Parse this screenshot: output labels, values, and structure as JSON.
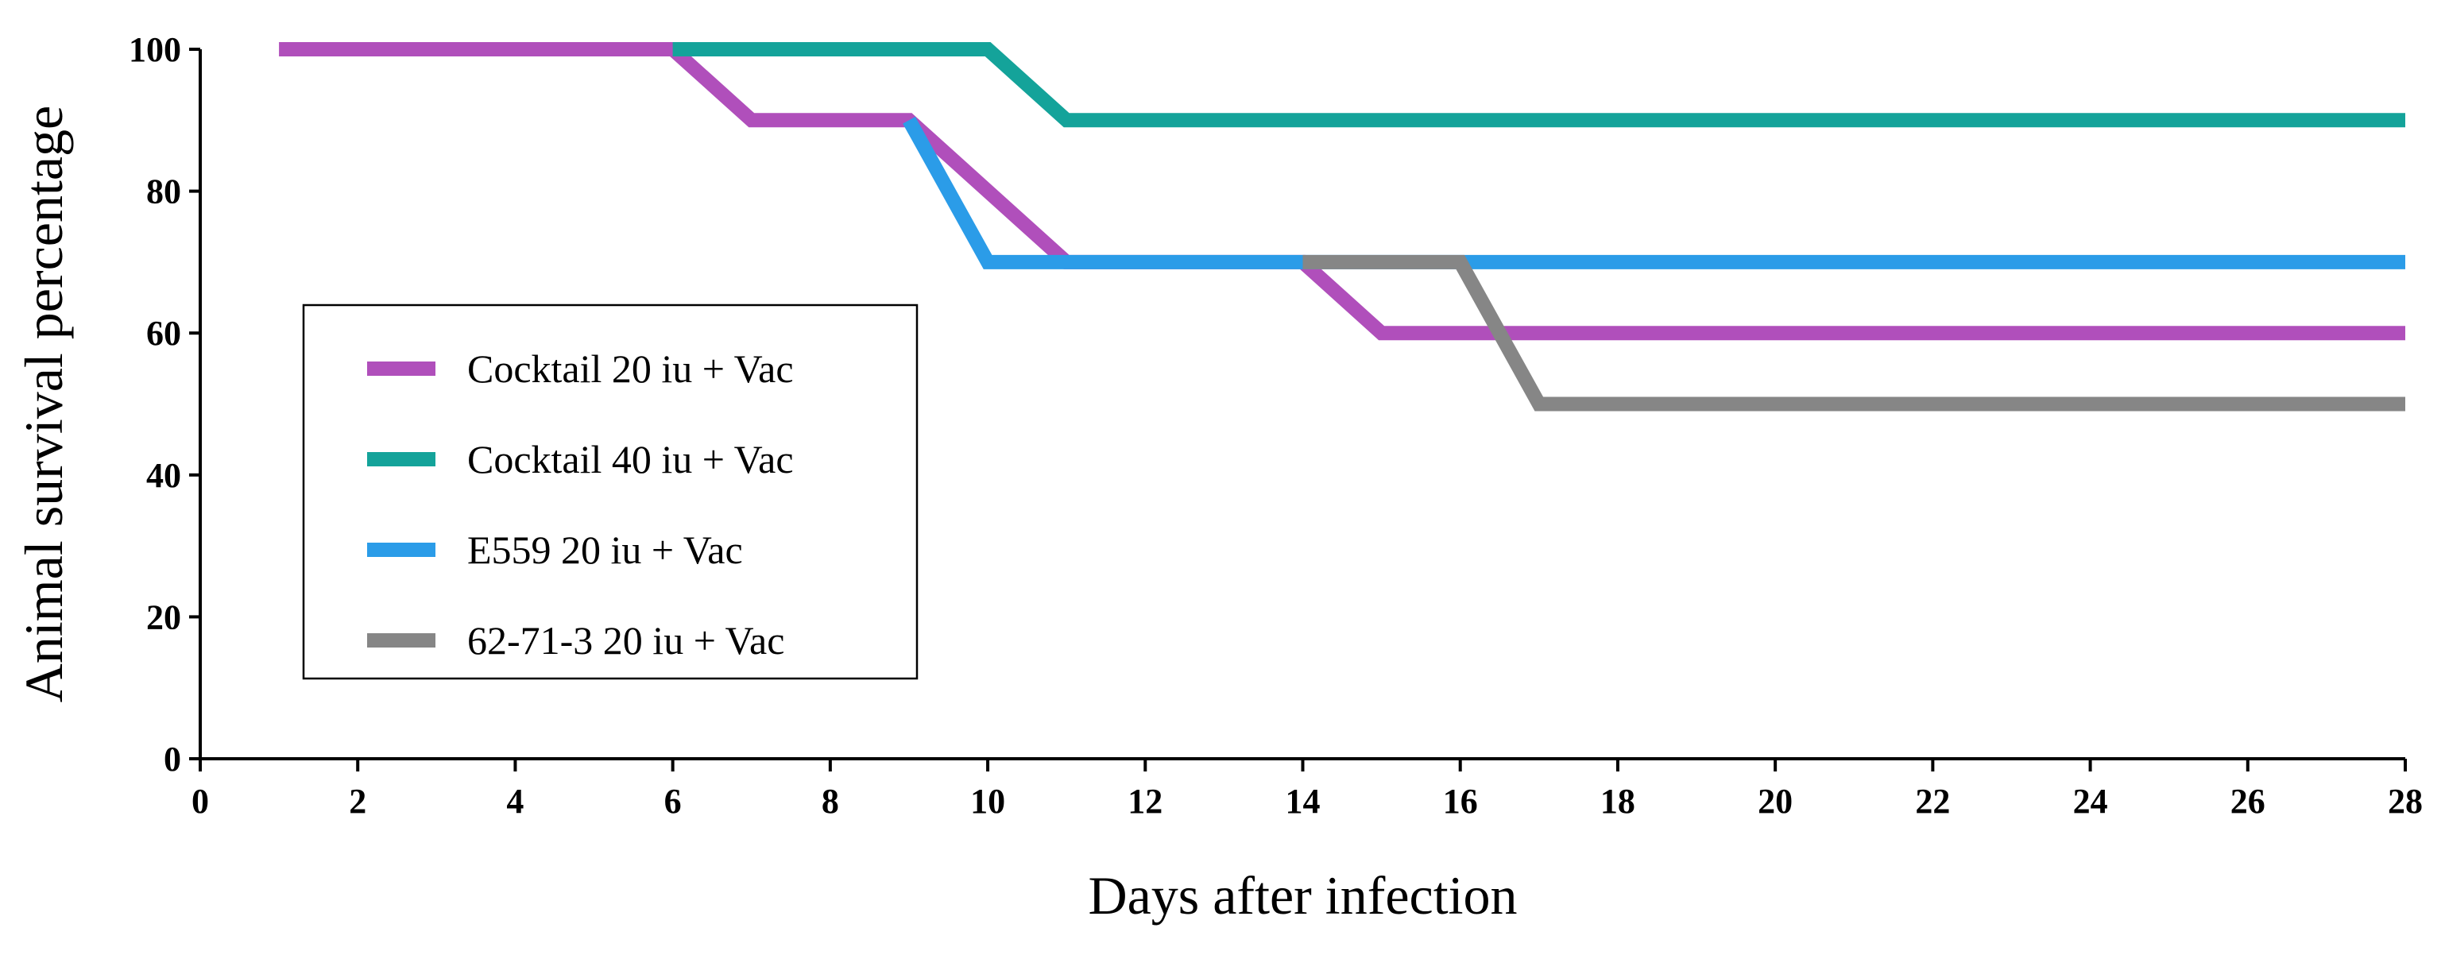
{
  "chart_data": {
    "type": "line",
    "title": "",
    "xlabel": "Days after infection",
    "ylabel": "Animal survival percentage",
    "xlim": [
      0,
      28
    ],
    "ylim": [
      0,
      100
    ],
    "xticks": [
      0,
      2,
      4,
      6,
      8,
      10,
      12,
      14,
      16,
      18,
      20,
      22,
      24,
      26,
      28
    ],
    "yticks": [
      0,
      20,
      40,
      60,
      80,
      100
    ],
    "grid": false,
    "legend_position": "left",
    "series": [
      {
        "name": "Cocktail 20 iu + Vac",
        "color": "#b04fbb",
        "x": [
          1,
          6,
          7,
          9,
          11,
          14,
          15,
          28
        ],
        "y": [
          100,
          100,
          90,
          90,
          70,
          70,
          60,
          60
        ]
      },
      {
        "name": "Cocktail 40 iu + Vac",
        "color": "#14a39a",
        "x": [
          6,
          10,
          11,
          28
        ],
        "y": [
          100,
          100,
          90,
          90
        ]
      },
      {
        "name": "E559 20 iu + Vac",
        "color": "#2b9ce8",
        "x": [
          9,
          10,
          28
        ],
        "y": [
          90,
          70,
          70
        ]
      },
      {
        "name": "62-71-3 20 iu + Vac",
        "color": "#868686",
        "x": [
          14,
          16,
          17,
          28
        ],
        "y": [
          70,
          70,
          50,
          50
        ]
      }
    ]
  }
}
